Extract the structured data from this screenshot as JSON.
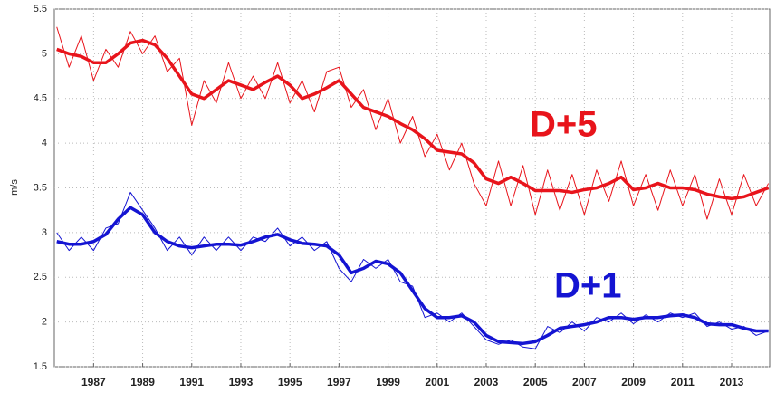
{
  "chart_data": {
    "type": "line",
    "y_label": "m/s",
    "x": [
      1985.5,
      1986,
      1986.5,
      1987,
      1987.5,
      1988,
      1988.5,
      1989,
      1989.5,
      1990,
      1990.5,
      1991,
      1991.5,
      1992,
      1992.5,
      1993,
      1993.5,
      1994,
      1994.5,
      1995,
      1995.5,
      1996,
      1996.5,
      1997,
      1997.5,
      1998,
      1998.5,
      1999,
      1999.5,
      2000,
      2000.5,
      2001,
      2001.5,
      2002,
      2002.5,
      2003,
      2003.5,
      2004,
      2004.5,
      2005,
      2005.5,
      2006,
      2006.5,
      2007,
      2007.5,
      2008,
      2008.5,
      2009,
      2009.5,
      2010,
      2010.5,
      2011,
      2011.5,
      2012,
      2012.5,
      2013,
      2013.5,
      2014,
      2014.5
    ],
    "xlim": [
      1985.4,
      2014.55
    ],
    "xticks": [
      1987,
      1989,
      1991,
      1993,
      1995,
      1997,
      1999,
      2001,
      2003,
      2005,
      2007,
      2009,
      2011,
      2013
    ],
    "ylim": [
      1.5,
      5.5
    ],
    "yticks": [
      1.5,
      2,
      2.5,
      3,
      3.5,
      4,
      4.5,
      5,
      5.5
    ],
    "grid": true,
    "series": [
      {
        "name": "D+5",
        "color": "#e8141b",
        "values": [
          5.05,
          5.0,
          4.97,
          4.9,
          4.9,
          5.0,
          5.12,
          5.15,
          5.1,
          4.95,
          4.75,
          4.55,
          4.5,
          4.6,
          4.7,
          4.65,
          4.6,
          4.68,
          4.75,
          4.65,
          4.5,
          4.55,
          4.62,
          4.7,
          4.55,
          4.4,
          4.35,
          4.3,
          4.22,
          4.15,
          4.05,
          3.92,
          3.9,
          3.88,
          3.78,
          3.6,
          3.55,
          3.62,
          3.55,
          3.47,
          3.47,
          3.47,
          3.45,
          3.48,
          3.5,
          3.55,
          3.62,
          3.48,
          3.5,
          3.55,
          3.5,
          3.5,
          3.48,
          3.43,
          3.4,
          3.38,
          3.4,
          3.45,
          3.5
        ],
        "raw_values": [
          5.3,
          4.85,
          5.2,
          4.7,
          5.05,
          4.85,
          5.25,
          5.0,
          5.2,
          4.8,
          4.95,
          4.2,
          4.7,
          4.45,
          4.9,
          4.5,
          4.75,
          4.5,
          4.9,
          4.45,
          4.7,
          4.35,
          4.8,
          4.85,
          4.4,
          4.6,
          4.15,
          4.5,
          4.0,
          4.3,
          3.85,
          4.1,
          3.7,
          4.0,
          3.55,
          3.3,
          3.8,
          3.3,
          3.75,
          3.2,
          3.7,
          3.25,
          3.65,
          3.2,
          3.7,
          3.35,
          3.8,
          3.3,
          3.65,
          3.25,
          3.7,
          3.3,
          3.65,
          3.15,
          3.6,
          3.2,
          3.65,
          3.3,
          3.55
        ]
      },
      {
        "name": "D+1",
        "color": "#1414d2",
        "values": [
          2.9,
          2.87,
          2.87,
          2.9,
          2.98,
          3.15,
          3.28,
          3.2,
          3.0,
          2.9,
          2.85,
          2.83,
          2.85,
          2.87,
          2.87,
          2.86,
          2.9,
          2.95,
          2.98,
          2.92,
          2.88,
          2.87,
          2.85,
          2.75,
          2.55,
          2.6,
          2.68,
          2.65,
          2.55,
          2.35,
          2.15,
          2.05,
          2.05,
          2.07,
          2.0,
          1.85,
          1.78,
          1.77,
          1.76,
          1.78,
          1.85,
          1.93,
          1.95,
          1.97,
          2.0,
          2.05,
          2.05,
          2.03,
          2.05,
          2.05,
          2.07,
          2.08,
          2.05,
          1.98,
          1.97,
          1.97,
          1.93,
          1.9,
          1.9
        ],
        "raw_values": [
          3.0,
          2.8,
          2.95,
          2.8,
          3.05,
          3.1,
          3.45,
          3.25,
          3.05,
          2.8,
          2.95,
          2.75,
          2.95,
          2.8,
          2.95,
          2.8,
          2.95,
          2.9,
          3.05,
          2.85,
          2.95,
          2.8,
          2.9,
          2.6,
          2.45,
          2.7,
          2.6,
          2.7,
          2.45,
          2.4,
          2.05,
          2.1,
          2.0,
          2.1,
          1.95,
          1.8,
          1.75,
          1.8,
          1.72,
          1.7,
          1.95,
          1.88,
          2.0,
          1.9,
          2.05,
          2.0,
          2.1,
          1.98,
          2.08,
          2.0,
          2.1,
          2.05,
          2.1,
          1.95,
          2.0,
          1.92,
          1.95,
          1.85,
          1.9
        ]
      }
    ]
  }
}
